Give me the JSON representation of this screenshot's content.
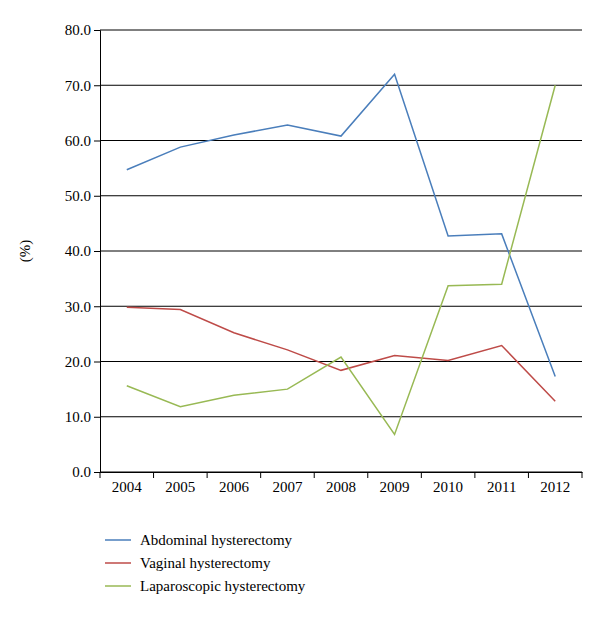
{
  "chart_data": {
    "type": "line",
    "y_label": "(%)",
    "categories": [
      "2004",
      "2005",
      "2006",
      "2007",
      "2008",
      "2009",
      "2010",
      "2011",
      "2012"
    ],
    "series": [
      {
        "name": "Abdominal hysterectomy",
        "color": "#4a7ebb",
        "values": [
          54.7,
          58.8,
          61.0,
          62.8,
          60.8,
          72.0,
          42.7,
          43.1,
          17.3
        ]
      },
      {
        "name": "Vaginal hysterectomy",
        "color": "#be4b48",
        "values": [
          29.8,
          29.4,
          25.2,
          22.1,
          18.4,
          21.1,
          20.2,
          22.9,
          12.8
        ]
      },
      {
        "name": "Laparoscopic hysterectomy",
        "color": "#98b954",
        "values": [
          15.6,
          11.8,
          13.9,
          15.0,
          20.8,
          6.8,
          33.7,
          34.0,
          70.0
        ]
      }
    ],
    "ylim": [
      0,
      80
    ],
    "yticks": [
      {
        "value": 0,
        "label": "0.0"
      },
      {
        "value": 10,
        "label": "10.0"
      },
      {
        "value": 20,
        "label": "20.0"
      },
      {
        "value": 30,
        "label": "30.0"
      },
      {
        "value": 40,
        "label": "40.0"
      },
      {
        "value": 50,
        "label": "50.0"
      },
      {
        "value": 60,
        "label": "60.0"
      },
      {
        "value": 70,
        "label": "70.0"
      },
      {
        "value": 80,
        "label": "80.0"
      }
    ],
    "grid": true,
    "legend": "bottom"
  }
}
